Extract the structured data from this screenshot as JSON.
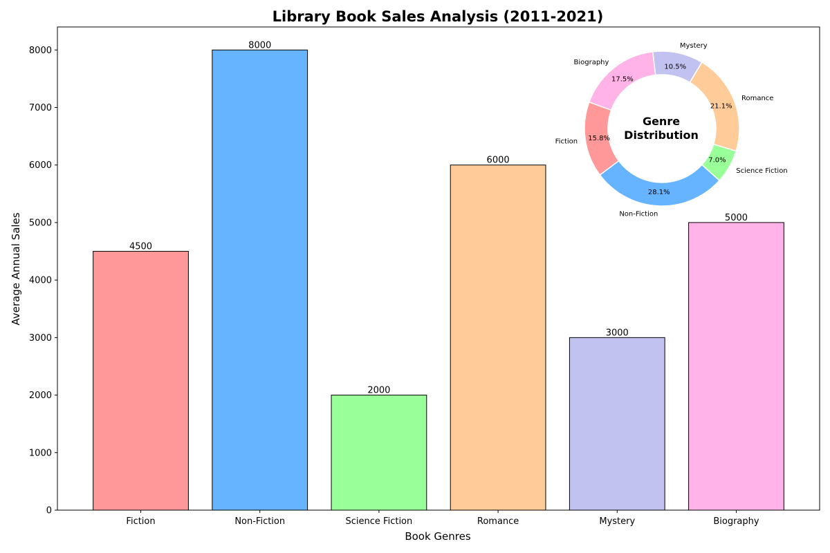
{
  "chart_data": [
    {
      "type": "bar",
      "title": "Library Book Sales Analysis (2011-2021)",
      "xlabel": "Book Genres",
      "ylabel": "Average Annual Sales",
      "categories": [
        "Fiction",
        "Non-Fiction",
        "Science Fiction",
        "Romance",
        "Mystery",
        "Biography"
      ],
      "values": [
        4500,
        8000,
        2000,
        6000,
        3000,
        5000
      ],
      "value_labels": [
        "4500",
        "8000",
        "2000",
        "6000",
        "3000",
        "5000"
      ],
      "colors": [
        "#ff9999",
        "#66b3ff",
        "#99ff99",
        "#ffcc99",
        "#c2c2f0",
        "#ffb3e6"
      ],
      "edge_color": "#000000",
      "ylim": [
        0,
        8400
      ],
      "yticks": [
        0,
        1000,
        2000,
        3000,
        4000,
        5000,
        6000,
        7000,
        8000
      ],
      "ytick_labels": [
        "0",
        "1000",
        "2000",
        "3000",
        "4000",
        "5000",
        "6000",
        "7000",
        "8000"
      ],
      "grid": false
    },
    {
      "type": "pie",
      "donut": true,
      "center_text": [
        "Genre",
        "Distribution"
      ],
      "categories": [
        "Fiction",
        "Non-Fiction",
        "Science Fiction",
        "Romance",
        "Mystery",
        "Biography"
      ],
      "values": [
        4500,
        8000,
        2000,
        6000,
        3000,
        5000
      ],
      "percent_labels": [
        "15.8%",
        "28.1%",
        "7.0%",
        "21.1%",
        "10.5%",
        "17.5%"
      ],
      "colors": [
        "#ff9999",
        "#66b3ff",
        "#99ff99",
        "#ffcc99",
        "#c2c2f0",
        "#ffb3e6"
      ],
      "start_angle_deg": 160,
      "direction": "counterclockwise",
      "placement": "top-right inset"
    }
  ]
}
